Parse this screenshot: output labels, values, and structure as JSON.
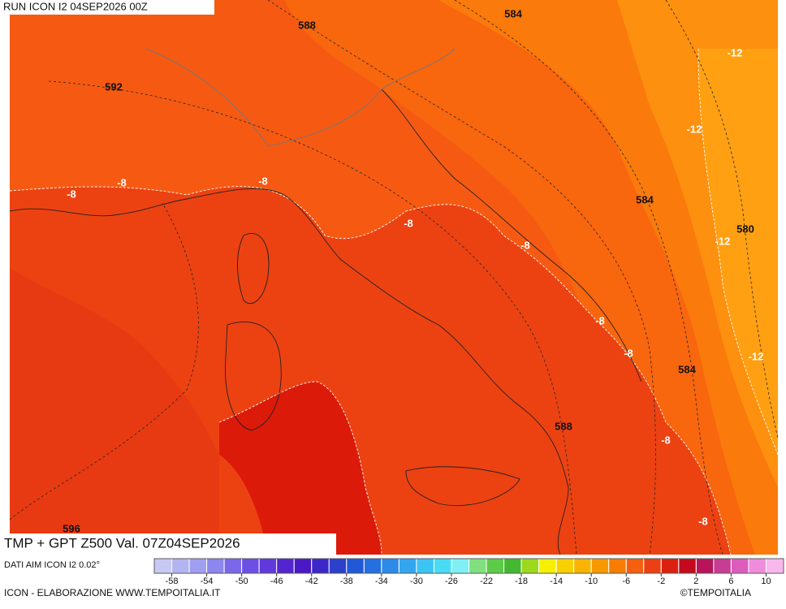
{
  "header": {
    "run": "RUN ICON I2 04SEP2026 00Z",
    "title": "TMP + GPT Z500 Val. 07Z04SEP2026"
  },
  "footer": {
    "source": "DATI AIM ICON I2 0.02°",
    "credit": "ICON - ELABORAZIONE WWW.TEMPOITALIA.IT",
    "brand": "©TEMPOITALIA"
  },
  "map": {
    "gpt_labels": [
      "584",
      "588",
      "592",
      "584",
      "580",
      "584",
      "588",
      "596"
    ],
    "tmp_labels": [
      "-12",
      "-12",
      "-8",
      "-8",
      "-8",
      "-8",
      "-8",
      "-12",
      "-8",
      "-8",
      "-12",
      "-8",
      "-8"
    ]
  },
  "colorbar": {
    "ticks": [
      -58,
      -54,
      -50,
      -46,
      -42,
      -38,
      -34,
      -30,
      -26,
      -22,
      -18,
      -14,
      -10,
      -6,
      -2,
      2,
      6,
      10
    ],
    "colors": [
      "#c8c8f4",
      "#b4b4f0",
      "#a09ef0",
      "#8c86ee",
      "#7a68ea",
      "#6c50e4",
      "#6038dc",
      "#5424d0",
      "#4a18c4",
      "#3c28c8",
      "#2c40cc",
      "#2058d8",
      "#2470e0",
      "#2c8ae8",
      "#34a6f0",
      "#3cc4f4",
      "#48dcf4",
      "#7ef0f4",
      "#80e080",
      "#5ccc48",
      "#44b830",
      "#9cd81c",
      "#f4f000",
      "#f8d000",
      "#f8b400",
      "#f89800",
      "#f87c00",
      "#f46010",
      "#ec4014",
      "#dc2010",
      "#c40a1c",
      "#b8145c",
      "#c83c94",
      "#dc5cbc",
      "#f08cdc",
      "#f8b8ec"
    ]
  }
}
